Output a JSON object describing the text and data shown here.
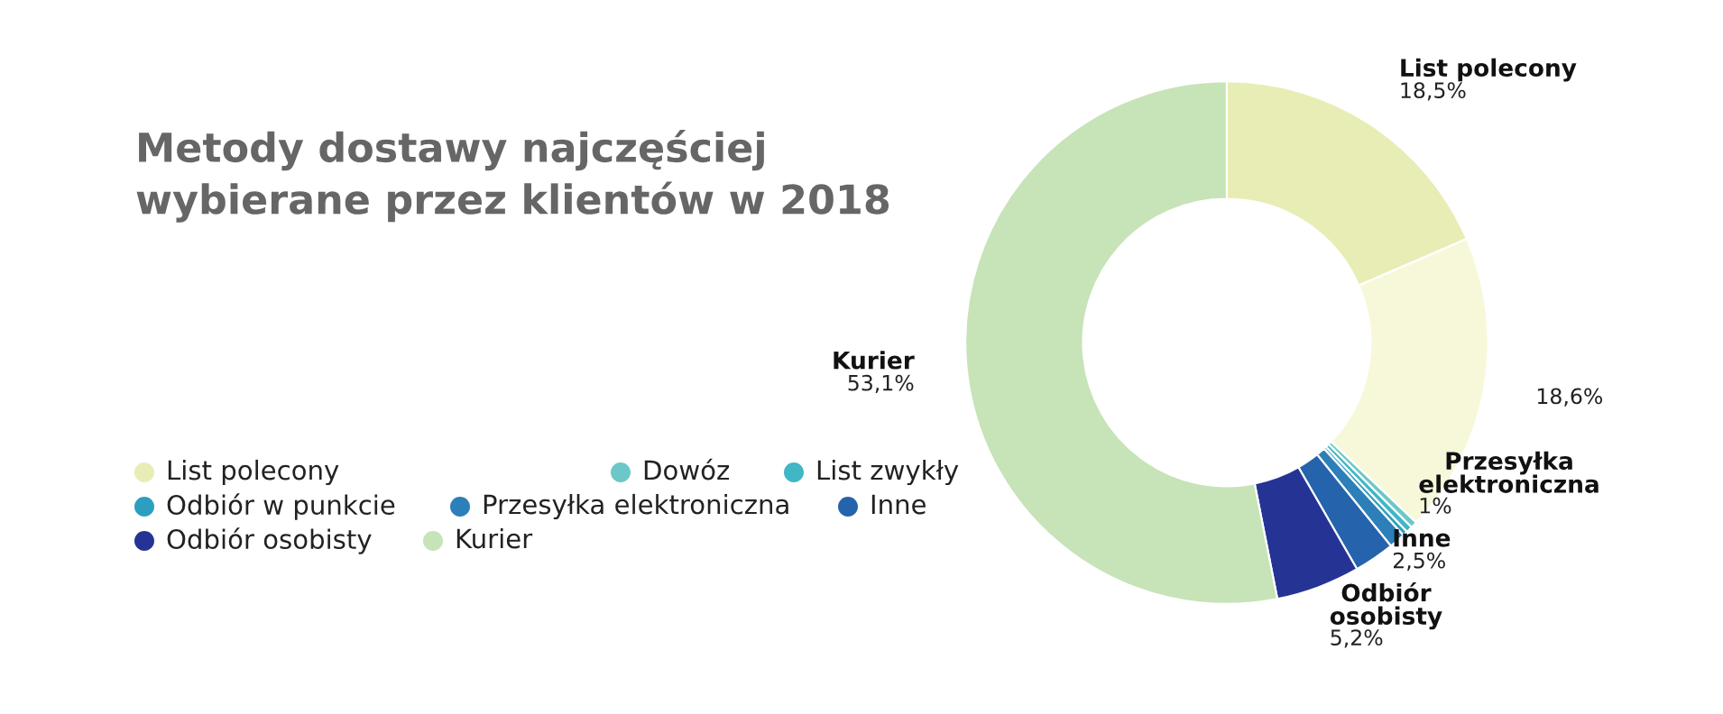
{
  "chart_data": {
    "type": "donut",
    "title": "Metody dostawy najczęściej\nwybierane przez klientów w 2018",
    "categories": [
      "List polecony",
      null,
      "Dowóz",
      "List zwykły",
      "Odbiór w punkcie",
      "Przesyłka elektroniczna",
      "Inne",
      "Odbiór osobisty",
      "Kurier"
    ],
    "values": [
      18.5,
      18.6,
      0.4,
      0.4,
      0.3,
      1,
      2.5,
      5.2,
      53.1
    ],
    "value_labels": [
      "18,5%",
      "18,6%",
      null,
      null,
      null,
      "1%",
      "2,5%",
      "5,2%",
      "53,1%"
    ],
    "colors": [
      "#e8edb5",
      "#f7f8d9",
      "#6cc8c8",
      "#41b6c4",
      "#2c9fc0",
      "#2c7fb8",
      "#2563ac",
      "#253494",
      "#c7e3b8"
    ],
    "legend": "left"
  }
}
